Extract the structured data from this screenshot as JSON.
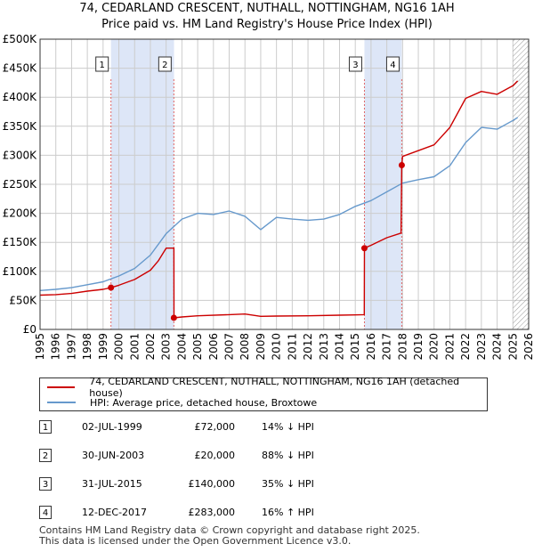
{
  "title_line1": "74, CEDARLAND CRESCENT, NUTHALL, NOTTINGHAM, NG16 1AH",
  "title_line2": "Price paid vs. HM Land Registry's House Price Index (HPI)",
  "colors": {
    "property": "#cc0000",
    "hpi": "#6699cc",
    "shade": "#dde6f7",
    "grid": "#cccccc",
    "sale_line": "#e06666"
  },
  "chart_data": {
    "type": "line",
    "title": "Price paid vs. HM Land Registry's House Price Index (HPI)",
    "xlabel": "",
    "ylabel": "",
    "xlim": [
      1995,
      2026
    ],
    "ylim": [
      0,
      500000
    ],
    "x_ticks": [
      1995,
      1996,
      1997,
      1998,
      1999,
      2000,
      2001,
      2002,
      2003,
      2004,
      2005,
      2006,
      2007,
      2008,
      2009,
      2010,
      2011,
      2012,
      2013,
      2014,
      2015,
      2016,
      2017,
      2018,
      2019,
      2020,
      2021,
      2022,
      2023,
      2024,
      2025,
      2026
    ],
    "y_ticks": [
      0,
      50000,
      100000,
      150000,
      200000,
      250000,
      300000,
      350000,
      400000,
      450000,
      500000
    ],
    "y_tick_labels": [
      "£0",
      "£50K",
      "£100K",
      "£150K",
      "£200K",
      "£250K",
      "£300K",
      "£350K",
      "£400K",
      "£450K",
      "£500K"
    ],
    "shaded_periods": [
      [
        1999.5,
        2003.5
      ],
      [
        2015.58,
        2017.95
      ]
    ],
    "hatched_from": 2025.0,
    "series": [
      {
        "name": "74, CEDARLAND CRESCENT, NUTHALL, NOTTINGHAM, NG16 1AH (detached house)",
        "color": "#cc0000",
        "x": [
          1995,
          1996,
          1997,
          1998,
          1999,
          1999.5,
          2000,
          2001,
          2002,
          2002.5,
          2003,
          2003.49,
          2003.5,
          2004,
          2005,
          2007,
          2008,
          2009,
          2010,
          2012,
          2014,
          2015,
          2015.57,
          2015.58,
          2016,
          2017,
          2017.9,
          2017.95,
          2018,
          2019,
          2020,
          2021,
          2022,
          2023,
          2024,
          2025,
          2025.3
        ],
        "y": [
          59000,
          60000,
          62000,
          66000,
          69000,
          72000,
          76000,
          86000,
          102000,
          118000,
          140000,
          140000,
          20000,
          21500,
          23500,
          25500,
          26500,
          22500,
          23000,
          23500,
          24500,
          25000,
          25500,
          140000,
          145000,
          158000,
          166000,
          283000,
          298000,
          308000,
          318000,
          348000,
          398000,
          410000,
          405000,
          420000,
          428000
        ]
      },
      {
        "name": "HPI: Average price, detached house, Broxtowe",
        "color": "#6699cc",
        "x": [
          1995,
          1996,
          1997,
          1998,
          1999,
          2000,
          2001,
          2002,
          2003,
          2004,
          2005,
          2006,
          2007,
          2008,
          2009,
          2010,
          2011,
          2012,
          2013,
          2014,
          2015,
          2016,
          2017,
          2018,
          2019,
          2020,
          2021,
          2022,
          2023,
          2024,
          2025,
          2025.3
        ],
        "y": [
          67000,
          69000,
          72000,
          77000,
          82000,
          92000,
          105000,
          128000,
          165000,
          190000,
          200000,
          198000,
          204000,
          195000,
          172000,
          193000,
          190000,
          188000,
          190000,
          198000,
          212000,
          222000,
          237000,
          252000,
          258000,
          263000,
          282000,
          322000,
          348000,
          345000,
          360000,
          365000
        ]
      }
    ],
    "sales": [
      {
        "id": "1",
        "x": 1999.5,
        "y": 72000
      },
      {
        "id": "2",
        "x": 2003.49,
        "y": 20000
      },
      {
        "id": "3",
        "x": 2015.58,
        "y": 140000
      },
      {
        "id": "4",
        "x": 2017.95,
        "y": 283000
      }
    ]
  },
  "legend": {
    "property_label": "74, CEDARLAND CRESCENT, NUTHALL, NOTTINGHAM, NG16 1AH (detached house)",
    "hpi_label": "HPI: Average price, detached house, Broxtowe"
  },
  "transactions": [
    {
      "id": "1",
      "date": "02-JUL-1999",
      "price": "£72,000",
      "hpi": "14% ↓ HPI"
    },
    {
      "id": "2",
      "date": "30-JUN-2003",
      "price": "£20,000",
      "hpi": "88% ↓ HPI"
    },
    {
      "id": "3",
      "date": "31-JUL-2015",
      "price": "£140,000",
      "hpi": "35% ↓ HPI"
    },
    {
      "id": "4",
      "date": "12-DEC-2017",
      "price": "£283,000",
      "hpi": "16% ↑ HPI"
    }
  ],
  "footer": {
    "line1": "Contains HM Land Registry data © Crown copyright and database right 2025.",
    "line2": "This data is licensed under the Open Government Licence v3.0."
  }
}
